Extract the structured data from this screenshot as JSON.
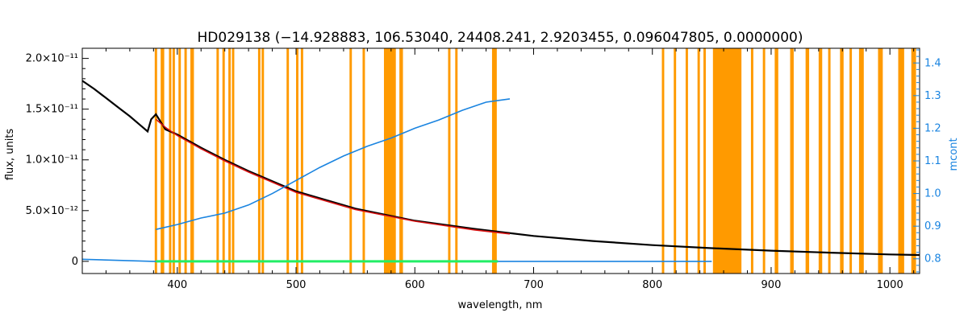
{
  "chart_data": {
    "type": "line",
    "title": "HD029138   (−14.928883, 106.53040, 24408.241, 2.9203455, 0.096047805, 0.0000000)",
    "xlabel": "wavelength, nm",
    "ylabel": "flux, units",
    "y2label": "mcont",
    "xlim": [
      320,
      1025
    ],
    "ylim": [
      -1.2e-12,
      2.1e-11
    ],
    "y2lim": [
      0.755,
      1.445
    ],
    "x_ticks": [
      400,
      500,
      600,
      700,
      800,
      900,
      1000
    ],
    "y_ticks": [
      {
        "value": 0,
        "label": "0"
      },
      {
        "value": 5e-12,
        "label": "5.0×10⁻¹²"
      },
      {
        "value": 1e-11,
        "label": "1.0×10⁻¹¹"
      },
      {
        "value": 1.5e-11,
        "label": "1.5×10⁻¹¹"
      },
      {
        "value": 2e-11,
        "label": "2.0×10⁻¹¹"
      }
    ],
    "y2_ticks": [
      0.8,
      0.9,
      1.0,
      1.1,
      1.2,
      1.3,
      1.4
    ],
    "series": [
      {
        "color": "#000000",
        "axis": "left",
        "x": [
          320,
          330,
          340,
          350,
          360,
          370,
          375,
          378,
          382,
          390,
          400,
          420,
          440,
          460,
          480,
          500,
          550,
          600,
          650,
          700,
          750,
          800,
          850,
          900,
          950,
          1000,
          1025
        ],
        "y": [
          1.78e-11,
          1.7e-11,
          1.61e-11,
          1.52e-11,
          1.43e-11,
          1.33e-11,
          1.28e-11,
          1.4e-11,
          1.45e-11,
          1.3e-11,
          1.25e-11,
          1.12e-11,
          1e-11,
          8.9e-12,
          7.9e-12,
          6.9e-12,
          5.2e-12,
          4e-12,
          3.2e-12,
          2.5e-12,
          2e-12,
          1.6e-12,
          1.3e-12,
          1.05e-12,
          8.5e-13,
          6.8e-13,
          6.2e-13
        ]
      },
      {
        "color": "#d81010",
        "axis": "left",
        "x": [
          382,
          390,
          400,
          420,
          440,
          460,
          480,
          500,
          550,
          600,
          650,
          680
        ],
        "y": [
          1.4e-11,
          1.32e-11,
          1.24e-11,
          1.11e-11,
          9.9e-12,
          8.8e-12,
          7.8e-12,
          6.8e-12,
          5.1e-12,
          3.95e-12,
          3.1e-12,
          2.7e-12
        ]
      },
      {
        "color": "#1a84e0",
        "axis": "right",
        "x": [
          382,
          400,
          420,
          440,
          460,
          480,
          500,
          520,
          540,
          560,
          580,
          600,
          620,
          640,
          660,
          670,
          680
        ],
        "y": [
          0.89,
          0.905,
          0.925,
          0.94,
          0.965,
          1.0,
          1.04,
          1.08,
          1.115,
          1.145,
          1.17,
          1.2,
          1.225,
          1.255,
          1.28,
          1.285,
          1.29
        ]
      },
      {
        "color": "#1a84e0",
        "axis": "left",
        "x": [
          320,
          380,
          500,
          700,
          850
        ],
        "y": [
          2e-13,
          0,
          0,
          0,
          0
        ]
      },
      {
        "color": "#22ee66",
        "axis": "left",
        "x": [
          382,
          400,
          450,
          500,
          550,
          600,
          650,
          670
        ],
        "y": [
          0,
          0,
          0,
          0,
          0,
          0,
          0,
          0
        ]
      }
    ],
    "masks": [
      [
        381,
        383
      ],
      [
        386,
        389
      ],
      [
        393,
        395
      ],
      [
        396,
        398
      ],
      [
        401,
        403
      ],
      [
        406,
        408
      ],
      [
        411,
        414
      ],
      [
        433,
        435
      ],
      [
        438,
        440
      ],
      [
        443,
        445
      ],
      [
        446,
        448
      ],
      [
        468,
        470
      ],
      [
        471,
        473
      ],
      [
        492,
        494
      ],
      [
        500,
        502
      ],
      [
        504,
        506
      ],
      [
        545,
        547
      ],
      [
        556,
        558
      ],
      [
        574,
        584
      ],
      [
        587,
        590
      ],
      [
        628,
        630
      ],
      [
        634,
        636
      ],
      [
        665,
        669
      ],
      [
        808,
        810
      ],
      [
        818,
        820
      ],
      [
        828,
        830
      ],
      [
        838,
        840
      ],
      [
        843,
        845
      ],
      [
        851,
        875
      ],
      [
        883,
        885
      ],
      [
        893,
        895
      ],
      [
        903,
        906
      ],
      [
        916,
        919
      ],
      [
        929,
        932
      ],
      [
        940,
        943
      ],
      [
        948,
        950
      ],
      [
        958,
        961
      ],
      [
        966,
        968
      ],
      [
        974,
        978
      ],
      [
        990,
        994
      ],
      [
        1007,
        1012
      ],
      [
        1018,
        1022
      ]
    ],
    "grid": false,
    "legend": "none"
  }
}
